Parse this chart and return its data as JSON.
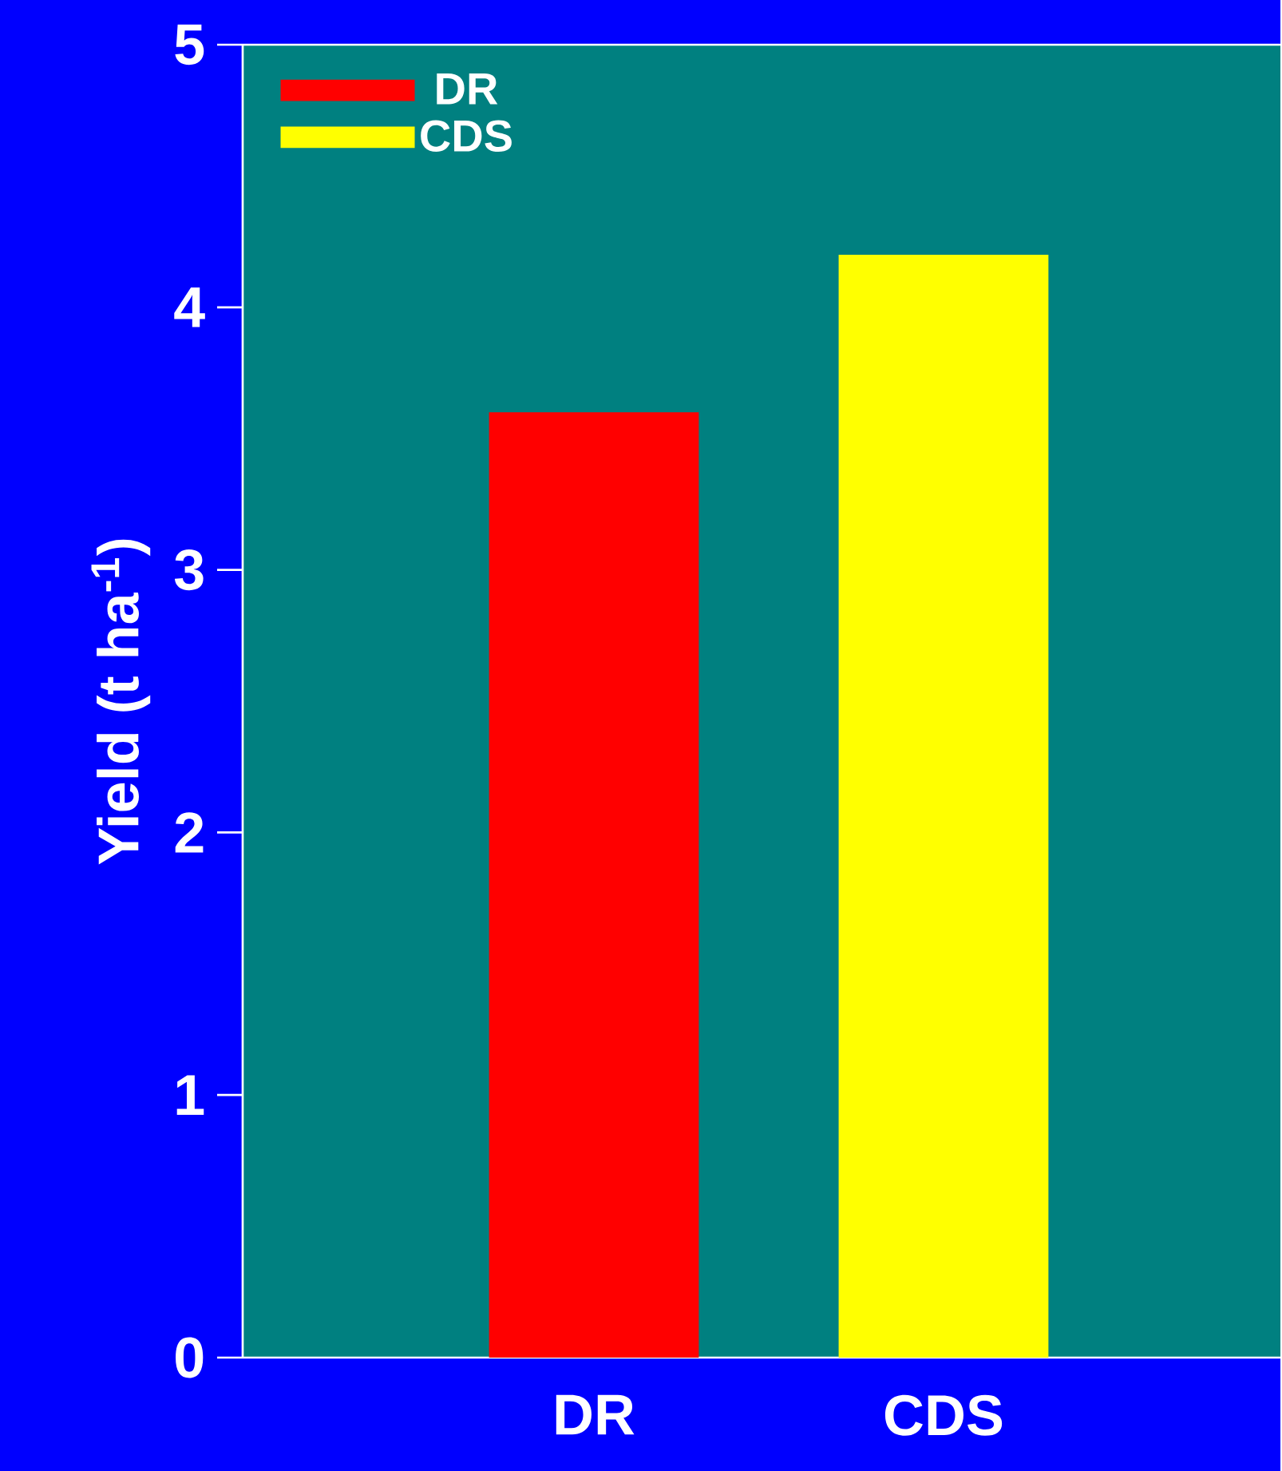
{
  "chart_data": {
    "type": "bar",
    "ylabel": "Yield (t ha$^{-1}$)",
    "categories": [
      "DR",
      "CDS"
    ],
    "series": [
      {
        "name": "DR",
        "color": "#ff0000",
        "values": [
          3.6,
          null
        ]
      },
      {
        "name": "CDS",
        "color": "#ffff00",
        "values": [
          null,
          4.2
        ]
      }
    ],
    "ylim": [
      0,
      5
    ],
    "yticks": [
      0,
      1,
      2,
      3,
      4,
      5
    ],
    "grid": false,
    "legend": "top left"
  }
}
